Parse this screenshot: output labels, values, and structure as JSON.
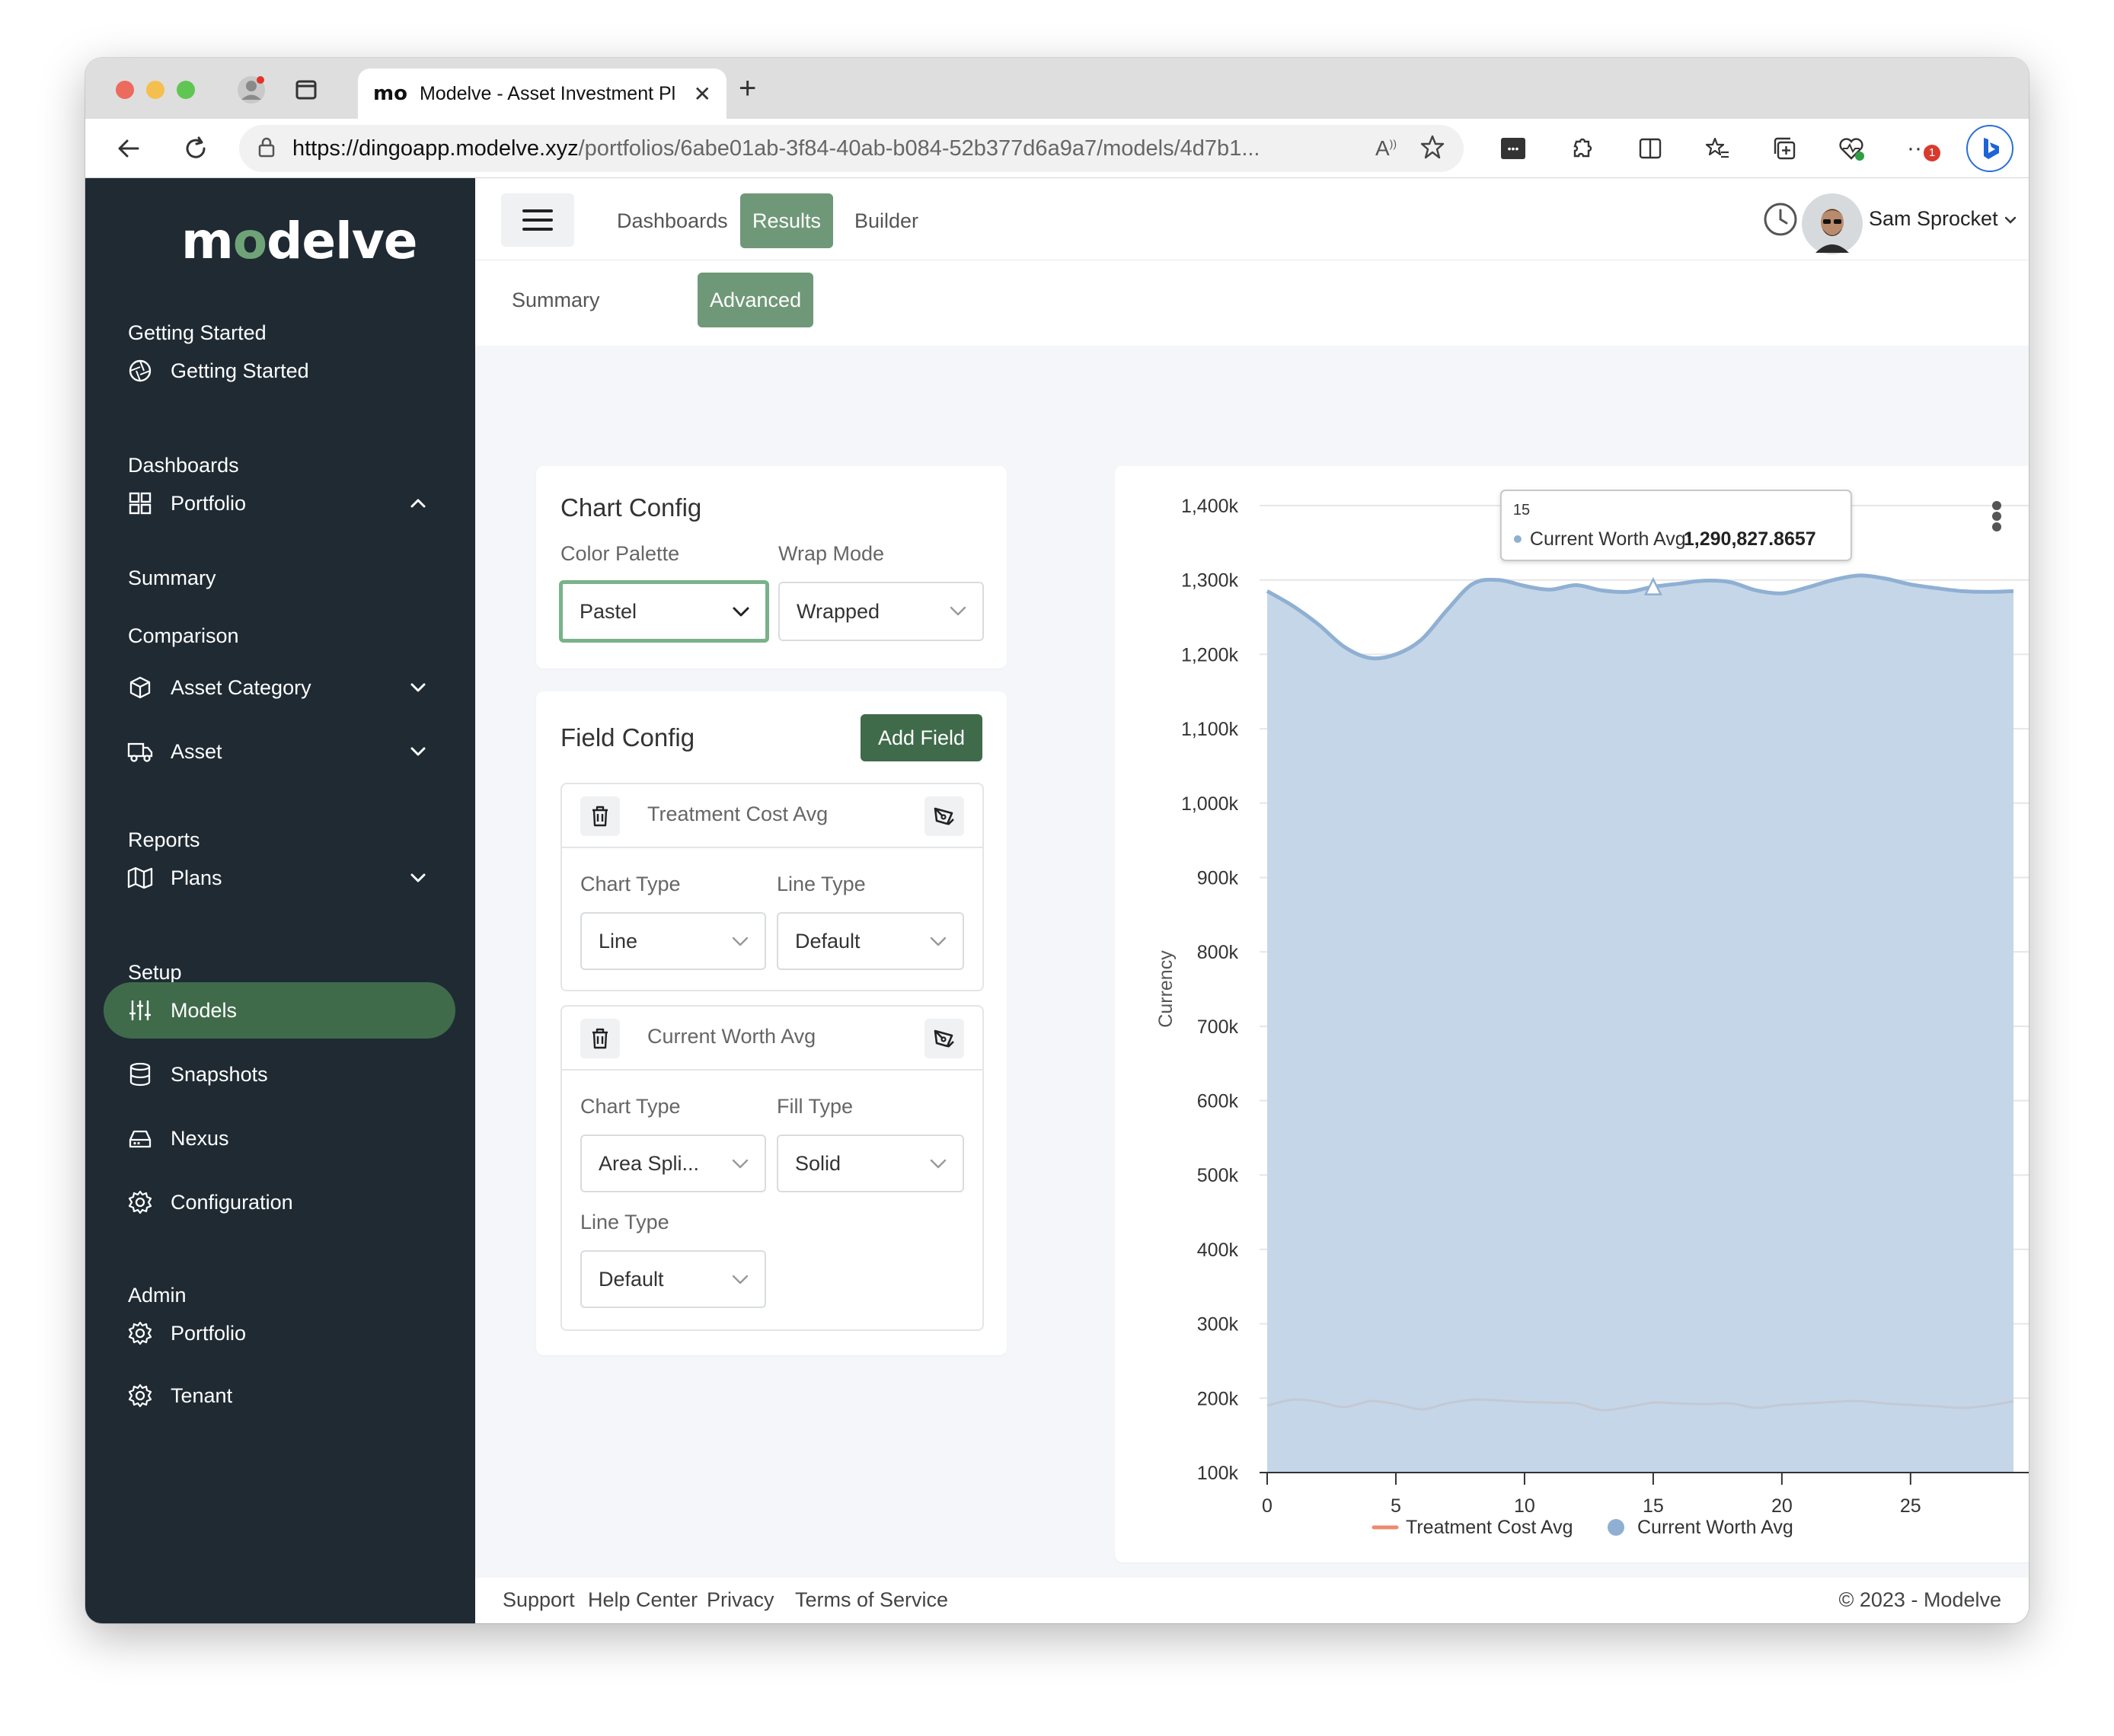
{
  "browser": {
    "tab_title": "Modelve - Asset Investment Pl",
    "tab_favicon": "mo",
    "url_host": "https://dingoapp.modelve.xyz",
    "url_path": "/portfolios/6abe01ab-3f84-40ab-b084-52b377d6a9a7/models/4d7b1...",
    "notification_badge": "1"
  },
  "sidebar": {
    "logo_a": "m",
    "logo_dot": "o",
    "logo_b": "delve",
    "sections": {
      "getting_started": "Getting Started",
      "dashboards": "Dashboards",
      "reports": "Reports",
      "setup": "Setup",
      "admin": "Admin"
    },
    "items": {
      "getting_started": "Getting Started",
      "portfolio": "Portfolio",
      "summary": "Summary",
      "comparison": "Comparison",
      "asset_category": "Asset Category",
      "asset": "Asset",
      "plans": "Plans",
      "models": "Models",
      "snapshots": "Snapshots",
      "nexus": "Nexus",
      "configuration": "Configuration",
      "admin_portfolio": "Portfolio",
      "tenant": "Tenant"
    }
  },
  "header": {
    "tabs": [
      "Dashboards",
      "Results",
      "Builder"
    ],
    "active_tab": "Results",
    "user_name": "Sam Sprocket"
  },
  "subtabs": {
    "items": [
      "Summary",
      "Advanced"
    ],
    "active": "Advanced"
  },
  "chart_config": {
    "title": "Chart Config",
    "color_palette_label": "Color Palette",
    "color_palette_value": "Pastel",
    "wrap_mode_label": "Wrap Mode",
    "wrap_mode_value": "Wrapped"
  },
  "field_config": {
    "title": "Field Config",
    "add_button": "Add Field",
    "fields": [
      {
        "name": "Treatment Cost Avg",
        "chart_type_label": "Chart Type",
        "chart_type_value": "Line",
        "line_type_label": "Line Type",
        "line_type_value": "Default"
      },
      {
        "name": "Current Worth Avg",
        "chart_type_label": "Chart Type",
        "chart_type_value": "Area Spli...",
        "fill_type_label": "Fill Type",
        "fill_type_value": "Solid",
        "line_type_label": "Line Type",
        "line_type_value": "Default"
      }
    ]
  },
  "chart_data": {
    "type": "area",
    "title": "",
    "xlabel": "",
    "ylabel": "Currency",
    "xlim": [
      0,
      29
    ],
    "ylim": [
      100000,
      1400000
    ],
    "x_ticks": [
      0,
      5,
      10,
      15,
      20,
      25
    ],
    "y_ticks": [
      100000,
      200000,
      300000,
      400000,
      500000,
      600000,
      700000,
      800000,
      900000,
      1000000,
      1100000,
      1200000,
      1300000,
      1400000
    ],
    "y_tick_labels": [
      "100k",
      "200k",
      "300k",
      "400k",
      "500k",
      "600k",
      "700k",
      "800k",
      "900k",
      "1,000k",
      "1,100k",
      "1,200k",
      "1,300k",
      "1,400k"
    ],
    "grid": true,
    "legend_position": "bottom",
    "series": [
      {
        "name": "Treatment Cost Avg",
        "kind": "line",
        "color": "#ee8a70",
        "x": [
          0,
          1,
          2,
          3,
          4,
          5,
          6,
          7,
          8,
          9,
          10,
          11,
          12,
          13,
          14,
          15,
          16,
          17,
          18,
          19,
          20,
          21,
          22,
          23,
          24,
          25,
          26,
          27,
          28,
          29
        ],
        "values": [
          190000,
          198000,
          195000,
          188000,
          196000,
          192000,
          185000,
          193000,
          198000,
          197000,
          195000,
          194000,
          193000,
          184000,
          188000,
          194000,
          193000,
          192000,
          193000,
          187000,
          191000,
          193000,
          195000,
          196000,
          193000,
          191000,
          189000,
          187000,
          190000,
          196000
        ]
      },
      {
        "name": "Current Worth Avg",
        "kind": "areaspline",
        "color": "#8fb0d3",
        "x": [
          0,
          1,
          2,
          3,
          4,
          5,
          6,
          7,
          8,
          9,
          10,
          11,
          12,
          13,
          14,
          15,
          16,
          17,
          18,
          19,
          20,
          21,
          22,
          23,
          24,
          25,
          26,
          27,
          28,
          29
        ],
        "values": [
          1285000,
          1265000,
          1240000,
          1210000,
          1195000,
          1200000,
          1220000,
          1260000,
          1295000,
          1300000,
          1292000,
          1287000,
          1293000,
          1286000,
          1284000,
          1290828,
          1295000,
          1299000,
          1297000,
          1286000,
          1282000,
          1290000,
          1300000,
          1306000,
          1302000,
          1294000,
          1289000,
          1285000,
          1284000,
          1285000
        ]
      }
    ],
    "tooltip": {
      "x_label": "15",
      "series_label": "Current Worth Avg:",
      "value_label": "1,290,827.8657",
      "x": 15,
      "y": 1290827.8657
    }
  },
  "footer": {
    "links": [
      "Support",
      "Help Center",
      "Privacy",
      "Terms of Service"
    ],
    "copyright": "© 2023 - Modelve"
  }
}
